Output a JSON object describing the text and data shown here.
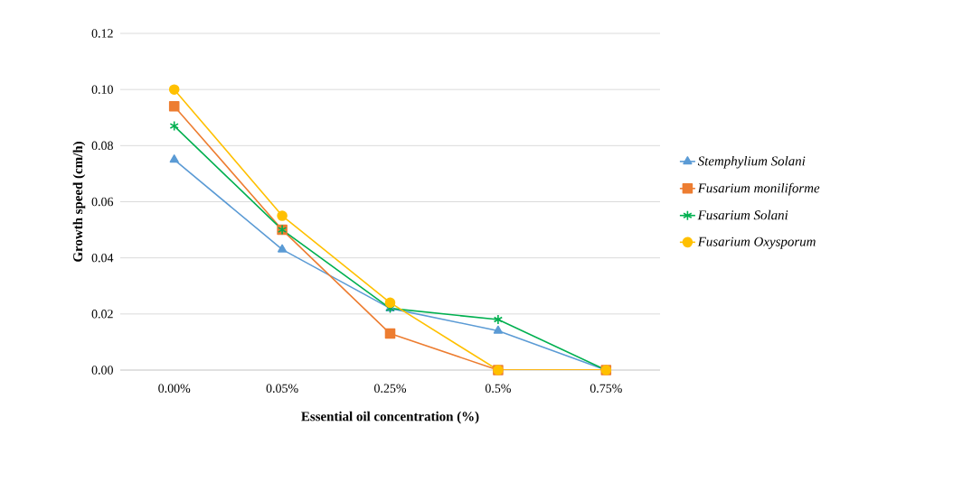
{
  "chart_data": {
    "type": "line",
    "xlabel": "Essential oil concentration (%)",
    "ylabel": "Growth speed (cm/h)",
    "categories": [
      "0.00%",
      "0.05%",
      "0.25%",
      "0.5%",
      "0.75%"
    ],
    "series": [
      {
        "name": "Stemphylium Solani",
        "color": "#5b9bd5",
        "marker": "triangle",
        "values": [
          0.075,
          0.043,
          0.022,
          0.014,
          0.0
        ]
      },
      {
        "name": "Fusarium moniliforme",
        "color": "#ed7d31",
        "marker": "square",
        "values": [
          0.094,
          0.05,
          0.013,
          0.0,
          0.0
        ]
      },
      {
        "name": "Fusarium Solani",
        "color": "#00b050",
        "marker": "cross",
        "values": [
          0.087,
          0.05,
          0.022,
          0.018,
          0.0
        ]
      },
      {
        "name": "Fusarium Oxysporum",
        "color": "#ffc000",
        "marker": "circle",
        "values": [
          0.1,
          0.055,
          0.024,
          0.0,
          0.0
        ]
      }
    ],
    "ylim": [
      0,
      0.12
    ],
    "yticks": [
      {
        "value": 0,
        "label": "0.00"
      },
      {
        "value": 0.02,
        "label": "0.02"
      },
      {
        "value": 0.04,
        "label": "0.04"
      },
      {
        "value": 0.06,
        "label": "0.06"
      },
      {
        "value": 0.08,
        "label": "0.08"
      },
      {
        "value": 0.1,
        "label": "0.10"
      },
      {
        "value": 0.12,
        "label": "0.12"
      }
    ],
    "grid": "y",
    "legend": "right",
    "line_style": "solid"
  }
}
